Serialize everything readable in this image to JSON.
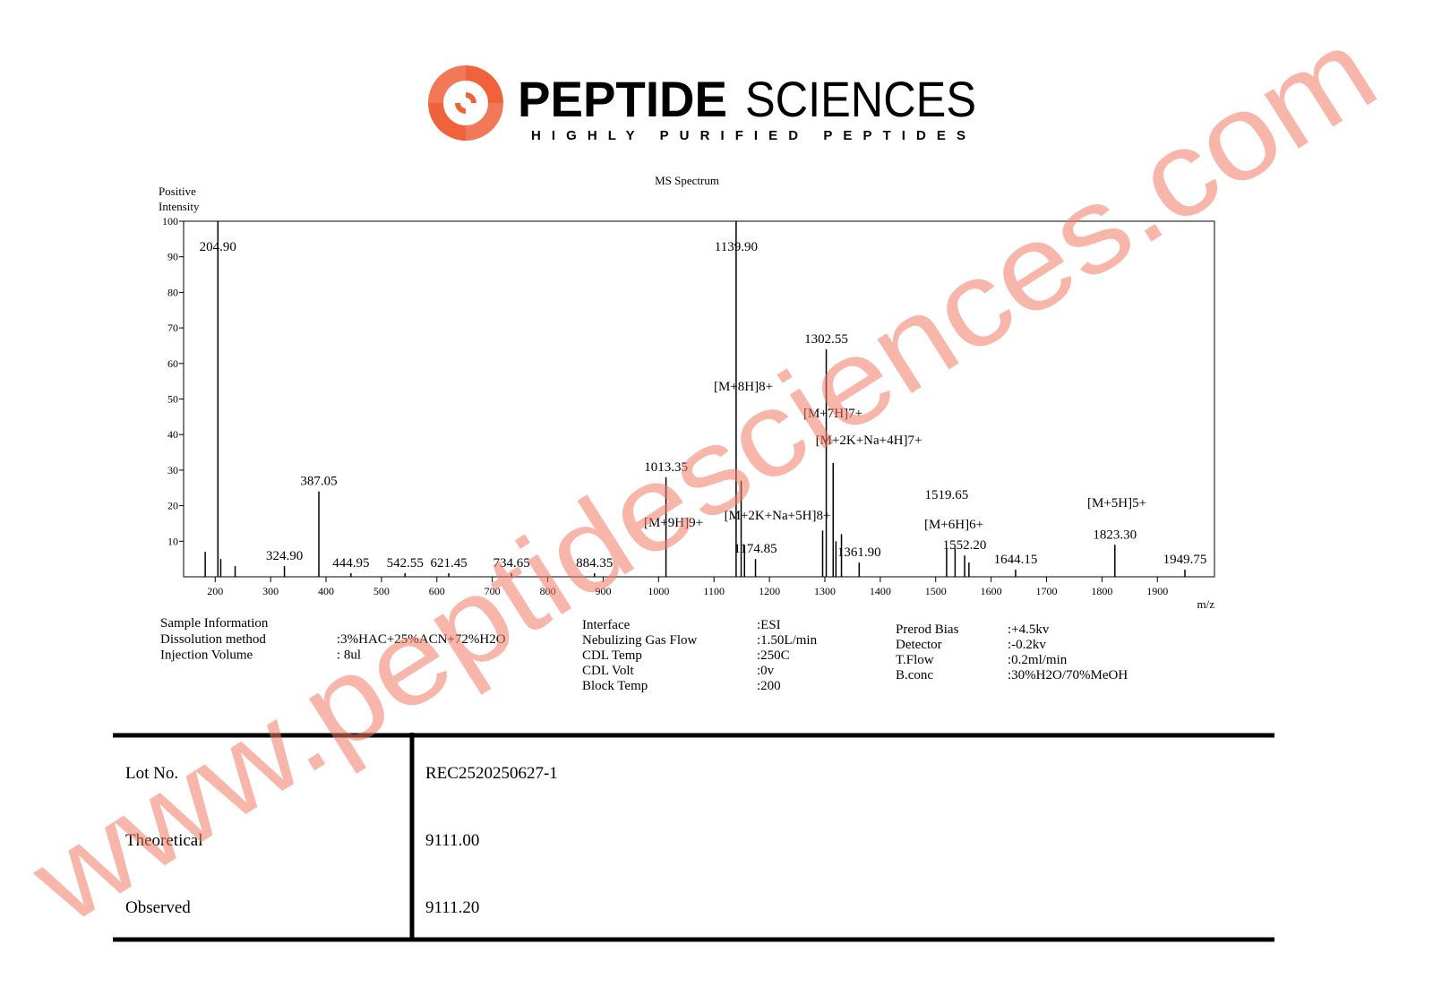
{
  "logo": {
    "name_bold": "PEPTIDE",
    "name_light": "SCIENCES",
    "tagline": "HIGHLY PURIFIED PEPTIDES"
  },
  "chart_data": {
    "type": "stem",
    "title": "MS Spectrum",
    "y_label": [
      "Positive",
      "Intensity"
    ],
    "x_label": "m/z",
    "xlim": [
      143,
      2003
    ],
    "ylim": [
      0,
      100
    ],
    "xticks": [
      200,
      300,
      400,
      500,
      600,
      700,
      800,
      900,
      1000,
      1100,
      1200,
      1300,
      1400,
      1500,
      1600,
      1700,
      1800,
      1900
    ],
    "yticks": [
      10,
      20,
      30,
      40,
      50,
      60,
      70,
      80,
      90,
      100
    ],
    "color": "#000000",
    "x": [
      182,
      204.9,
      210,
      236,
      324.9,
      387.05,
      444.95,
      542.55,
      621.45,
      734.65,
      884.35,
      1013.35,
      1139.9,
      1149,
      1155,
      1174.85,
      1296,
      1302.55,
      1315,
      1320,
      1330,
      1361.9,
      1519.65,
      1535,
      1552.2,
      1560,
      1644.15,
      1823.3,
      1949.75
    ],
    "values": [
      7,
      100,
      5,
      3,
      3,
      24,
      1,
      1,
      1,
      1,
      1,
      28,
      100,
      27,
      9,
      5,
      13,
      64,
      32,
      10,
      12,
      4,
      8,
      8,
      6,
      4,
      2,
      9,
      2
    ],
    "x_labels": [
      null,
      "204.90",
      null,
      null,
      "324.90",
      "387.05",
      "444.95",
      "542.55",
      "621.45",
      "734.65",
      "884.35",
      "1013.35",
      "1139.90",
      null,
      null,
      "1174.85",
      null,
      "1302.55",
      null,
      null,
      null,
      "1361.90",
      "1519.65",
      null,
      "1552.20",
      null,
      "1644.15",
      "1823.30",
      "1949.75"
    ],
    "annotations": [
      "[M+8H]8+",
      "[M+7H]7+",
      "[M+2K+Na+4H]7+",
      "[M+9H]9+",
      "[M+2K+Na+5H]8+",
      "[M+6H]6+",
      "[M+5H]5+"
    ]
  },
  "info": {
    "heading": "Sample Information",
    "left": [
      {
        "label": "Dissolution method",
        "value": ":3%HAC+25%ACN+72%H2O"
      },
      {
        "label": "Injection Volume",
        "value": ": 8ul"
      }
    ],
    "middle": [
      {
        "label": "Interface",
        "value": ":ESI"
      },
      {
        "label": "Nebulizing Gas Flow",
        "value": ":1.50L/min"
      },
      {
        "label": "CDL Temp",
        "value": ":250C"
      },
      {
        "label": "CDL Volt",
        "value": ":0v"
      },
      {
        "label": "Block Temp",
        "value": ":200"
      }
    ],
    "right": [
      {
        "label": "Prerod Bias",
        "value": ":+4.5kv"
      },
      {
        "label": "Detector",
        "value": ":-0.2kv"
      },
      {
        "label": "T.Flow",
        "value": ":0.2ml/min"
      },
      {
        "label": "B.conc",
        "value": ":30%H2O/70%MeOH"
      }
    ]
  },
  "table": {
    "rows": [
      [
        "Lot No.",
        "REC2520250627-1"
      ],
      [
        "Theoretical",
        "9111.00"
      ],
      [
        "Observed",
        "9111.20"
      ]
    ]
  },
  "watermark": "www.peptidesciences.com"
}
